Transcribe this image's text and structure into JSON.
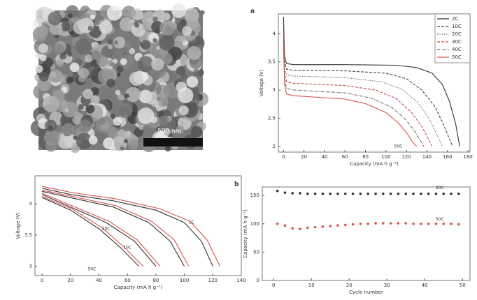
{
  "image": {
    "scale_bar": "500 nm"
  },
  "chart_data": [
    {
      "type": "line",
      "panel": "a",
      "xlabel": "Capacity (mA h g⁻¹)",
      "ylabel": "Voltage (V)",
      "xlim": [
        -5,
        182
      ],
      "ylim": [
        1.9,
        4.35
      ],
      "xticks": [
        0,
        20,
        40,
        60,
        80,
        100,
        120,
        140,
        160,
        180
      ],
      "yticks": [
        2.0,
        2.5,
        3.0,
        3.5,
        4.0
      ],
      "legend": "top-right",
      "annotations": [
        {
          "text": "50C",
          "x": 112,
          "y": 2.0
        }
      ],
      "series": [
        {
          "name": "2C",
          "color": "#333333",
          "style": "solid",
          "x": [
            0,
            1,
            3,
            10,
            60,
            110,
            130,
            145,
            155,
            162,
            168,
            172
          ],
          "values": [
            4.3,
            3.6,
            3.47,
            3.45,
            3.45,
            3.44,
            3.4,
            3.3,
            3.1,
            2.8,
            2.4,
            2.0
          ]
        },
        {
          "name": "10C",
          "color": "#444444",
          "style": "dashed",
          "x": [
            0,
            1,
            3,
            10,
            60,
            100,
            120,
            135,
            148,
            157,
            165
          ],
          "values": [
            4.2,
            3.5,
            3.37,
            3.35,
            3.34,
            3.3,
            3.2,
            3.0,
            2.7,
            2.35,
            2.0
          ]
        },
        {
          "name": "20C",
          "color": "#555555",
          "style": "dotted",
          "x": [
            0,
            1,
            3,
            10,
            60,
            95,
            115,
            130,
            142,
            150,
            155
          ],
          "values": [
            4.1,
            3.4,
            3.27,
            3.25,
            3.22,
            3.15,
            3.02,
            2.8,
            2.5,
            2.2,
            2.0
          ]
        },
        {
          "name": "30C",
          "color": "#c0504d",
          "style": "dashed",
          "x": [
            0,
            1,
            3,
            10,
            60,
            90,
            110,
            125,
            135,
            141,
            145
          ],
          "values": [
            4.0,
            3.3,
            3.15,
            3.12,
            3.08,
            3.0,
            2.85,
            2.6,
            2.35,
            2.15,
            2.0
          ]
        },
        {
          "name": "40C",
          "color": "#666666",
          "style": "dashdot",
          "x": [
            0,
            1,
            3,
            10,
            60,
            85,
            105,
            118,
            127,
            133,
            137
          ],
          "values": [
            3.9,
            3.2,
            3.03,
            3.0,
            2.95,
            2.86,
            2.7,
            2.5,
            2.3,
            2.12,
            2.0
          ]
        },
        {
          "name": "50C",
          "color": "#d9534f",
          "style": "solid",
          "x": [
            0,
            1,
            3,
            10,
            60,
            80,
            100,
            112,
            121,
            126,
            130
          ],
          "values": [
            3.8,
            3.1,
            2.93,
            2.9,
            2.84,
            2.76,
            2.6,
            2.42,
            2.22,
            2.08,
            2.0
          ]
        }
      ]
    },
    {
      "type": "line",
      "xlabel": "Capacity (mA h g⁻¹)",
      "ylabel": "Voltage (V)",
      "xlim": [
        -5,
        140
      ],
      "ylim": [
        2.85,
        4.45
      ],
      "xticks": [
        0,
        20,
        40,
        60,
        80,
        100,
        120,
        140
      ],
      "yticks": [
        3.0,
        3.5,
        4.0
      ],
      "annotations": [
        {
          "text": "1C",
          "x": 105,
          "y": 3.7
        },
        {
          "text": "20C",
          "x": 45,
          "y": 3.6
        },
        {
          "text": "50C",
          "x": 35,
          "y": 2.95
        },
        {
          "text": "10C",
          "x": 60,
          "y": 3.3
        }
      ],
      "series": [
        {
          "color": "#333333",
          "style": "solid",
          "x": [
            0,
            20,
            40,
            55,
            68
          ],
          "values": [
            4.1,
            3.9,
            3.6,
            3.3,
            3.0
          ]
        },
        {
          "color": "#d9534f",
          "style": "solid",
          "x": [
            0,
            21,
            42,
            57,
            71
          ],
          "values": [
            4.12,
            3.92,
            3.62,
            3.32,
            3.0
          ]
        },
        {
          "color": "#333333",
          "style": "solid",
          "x": [
            0,
            20,
            45,
            65,
            80
          ],
          "values": [
            4.15,
            3.95,
            3.7,
            3.4,
            3.0
          ]
        },
        {
          "color": "#d9534f",
          "style": "solid",
          "x": [
            0,
            21,
            47,
            67,
            83
          ],
          "values": [
            4.17,
            3.97,
            3.72,
            3.42,
            3.0
          ]
        },
        {
          "color": "#333333",
          "style": "solid",
          "x": [
            0,
            20,
            50,
            75,
            90,
            100
          ],
          "values": [
            4.2,
            4.1,
            3.95,
            3.7,
            3.4,
            3.0
          ]
        },
        {
          "color": "#d9534f",
          "style": "solid",
          "x": [
            0,
            21,
            52,
            77,
            93,
            103
          ],
          "values": [
            4.22,
            4.12,
            3.97,
            3.72,
            3.42,
            3.0
          ]
        },
        {
          "color": "#333333",
          "style": "solid",
          "x": [
            0,
            20,
            50,
            80,
            100,
            112,
            120
          ],
          "values": [
            4.25,
            4.15,
            4.05,
            3.9,
            3.7,
            3.4,
            3.0
          ]
        },
        {
          "color": "#d9534f",
          "style": "solid",
          "x": [
            0,
            21,
            52,
            83,
            104,
            116,
            125
          ],
          "values": [
            4.28,
            4.18,
            4.08,
            3.92,
            3.72,
            3.42,
            3.0
          ]
        }
      ]
    },
    {
      "type": "line",
      "panel": "b",
      "xlabel": "Cycle number",
      "ylabel": "Capacity (mA h g⁻¹)",
      "xlim": [
        -3,
        52
      ],
      "ylim": [
        0,
        165
      ],
      "xticks": [
        0,
        10,
        20,
        30,
        40,
        50
      ],
      "yticks": [
        0,
        50,
        100,
        150
      ],
      "annotations": [
        {
          "text": "20C",
          "x": 44,
          "y": 163
        },
        {
          "text": "50C",
          "x": 44,
          "y": 108
        }
      ],
      "series": [
        {
          "color": "#333333",
          "style": "marker",
          "x": [
            1,
            3,
            5,
            7,
            9,
            11,
            13,
            15,
            17,
            19,
            21,
            23,
            25,
            27,
            29,
            31,
            33,
            35,
            37,
            39,
            41,
            43,
            45,
            47,
            49
          ],
          "values": [
            158,
            155,
            154,
            154,
            153,
            153,
            153,
            153,
            153,
            153,
            153,
            153,
            153,
            153,
            153,
            153,
            153,
            153,
            153,
            153,
            153,
            153,
            153,
            153,
            153
          ]
        },
        {
          "color": "#d9534f",
          "style": "marker",
          "x": [
            1,
            3,
            5,
            7,
            9,
            11,
            13,
            15,
            17,
            19,
            21,
            23,
            25,
            27,
            29,
            31,
            33,
            35,
            37,
            39,
            41,
            43,
            45,
            47,
            49
          ],
          "values": [
            100,
            97,
            92,
            91,
            93,
            94,
            95,
            96,
            97,
            98,
            99,
            100,
            100,
            101,
            101,
            101,
            101,
            101,
            100,
            100,
            100,
            100,
            100,
            100,
            99
          ]
        }
      ]
    }
  ]
}
